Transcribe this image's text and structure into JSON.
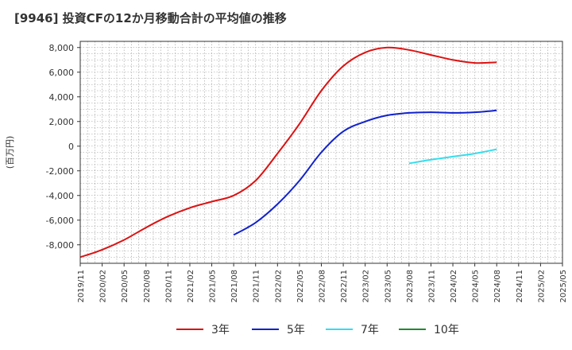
{
  "title": "[9946]  投資CFの12か月移動合計の平均値の推移",
  "chart_data": {
    "type": "line",
    "ylabel": "(百万円)",
    "xlabel": "",
    "ylim": [
      -9500,
      8500
    ],
    "yticks": [
      8000,
      6000,
      4000,
      2000,
      0,
      -2000,
      -4000,
      -6000,
      -8000
    ],
    "ytick_labels": [
      "8,000",
      "6,000",
      "4,000",
      "2,000",
      "0",
      "-2,000",
      "-4,000",
      "-6,000",
      "-8,000"
    ],
    "xlim": [
      "2019/11",
      "2025/05"
    ],
    "x_ticks": [
      "2019/11",
      "2020/02",
      "2020/05",
      "2020/08",
      "2020/11",
      "2021/02",
      "2021/05",
      "2021/08",
      "2021/11",
      "2022/02",
      "2022/05",
      "2022/08",
      "2022/11",
      "2023/02",
      "2023/05",
      "2023/08",
      "2023/11",
      "2024/02",
      "2024/05",
      "2024/08",
      "2024/11",
      "2025/02",
      "2025/05"
    ],
    "grid": true,
    "legend_position": "bottom",
    "series": [
      {
        "name": "3年",
        "color": "#dd1111",
        "points": [
          [
            "2019/11",
            -9000
          ],
          [
            "2020/02",
            -8400
          ],
          [
            "2020/05",
            -7600
          ],
          [
            "2020/08",
            -6600
          ],
          [
            "2020/11",
            -5700
          ],
          [
            "2021/02",
            -5000
          ],
          [
            "2021/05",
            -4500
          ],
          [
            "2021/08",
            -4000
          ],
          [
            "2021/11",
            -2800
          ],
          [
            "2022/02",
            -600
          ],
          [
            "2022/05",
            1800
          ],
          [
            "2022/08",
            4500
          ],
          [
            "2022/11",
            6500
          ],
          [
            "2023/02",
            7600
          ],
          [
            "2023/05",
            8000
          ],
          [
            "2023/08",
            7800
          ],
          [
            "2023/11",
            7400
          ],
          [
            "2024/02",
            7000
          ],
          [
            "2024/05",
            6750
          ],
          [
            "2024/08",
            6800
          ]
        ]
      },
      {
        "name": "5年",
        "color": "#1122cc",
        "points": [
          [
            "2021/08",
            -7200
          ],
          [
            "2021/11",
            -6200
          ],
          [
            "2022/02",
            -4700
          ],
          [
            "2022/05",
            -2800
          ],
          [
            "2022/08",
            -500
          ],
          [
            "2022/11",
            1200
          ],
          [
            "2023/02",
            2000
          ],
          [
            "2023/05",
            2500
          ],
          [
            "2023/08",
            2700
          ],
          [
            "2023/11",
            2750
          ],
          [
            "2024/02",
            2700
          ],
          [
            "2024/05",
            2750
          ],
          [
            "2024/08",
            2900
          ]
        ]
      },
      {
        "name": "7年",
        "color": "#33ddee",
        "points": [
          [
            "2023/08",
            -1400
          ],
          [
            "2023/11",
            -1100
          ],
          [
            "2024/02",
            -850
          ],
          [
            "2024/05",
            -600
          ],
          [
            "2024/08",
            -250
          ]
        ]
      },
      {
        "name": "10年",
        "color": "#228833",
        "points": []
      }
    ]
  }
}
